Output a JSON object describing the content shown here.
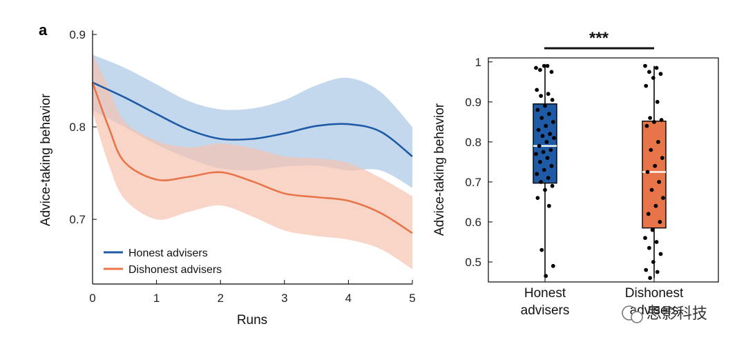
{
  "figure": {
    "panel_label": "a",
    "watermark": "思影科技"
  },
  "chart_data": [
    {
      "type": "line",
      "title": "",
      "xlabel": "Runs",
      "ylabel": "Advice-taking behavior",
      "xlim": [
        0,
        5
      ],
      "ylim": [
        0.63,
        0.9
      ],
      "xticks": [
        0,
        1,
        2,
        3,
        4,
        5
      ],
      "yticks": [
        0.7,
        0.8,
        0.9
      ],
      "grid": false,
      "legend_position": "bottom-left",
      "series": [
        {
          "name": "Honest advisers",
          "color": "#1f5aa6",
          "band_color": "#a9c6e6",
          "x": [
            0,
            0.5,
            1,
            1.5,
            2,
            2.5,
            3,
            3.5,
            4,
            4.5,
            5
          ],
          "y": [
            0.848,
            0.832,
            0.814,
            0.797,
            0.787,
            0.787,
            0.793,
            0.801,
            0.803,
            0.795,
            0.768
          ],
          "upper": [
            0.878,
            0.864,
            0.846,
            0.828,
            0.819,
            0.82,
            0.829,
            0.845,
            0.853,
            0.838,
            0.8
          ],
          "lower": [
            0.818,
            0.8,
            0.781,
            0.766,
            0.755,
            0.753,
            0.757,
            0.758,
            0.753,
            0.753,
            0.734
          ]
        },
        {
          "name": "Dishonest advisers",
          "color": "#e8754a",
          "band_color": "#f7c3b0",
          "x": [
            0,
            0.25,
            0.5,
            1,
            1.5,
            2,
            2.5,
            3,
            3.5,
            4,
            4.5,
            5
          ],
          "y": [
            0.848,
            0.8,
            0.762,
            0.743,
            0.746,
            0.751,
            0.741,
            0.728,
            0.724,
            0.72,
            0.707,
            0.685
          ],
          "upper": [
            0.88,
            0.842,
            0.806,
            0.785,
            0.778,
            0.782,
            0.777,
            0.768,
            0.766,
            0.761,
            0.745,
            0.725
          ],
          "lower": [
            0.816,
            0.76,
            0.722,
            0.7,
            0.708,
            0.715,
            0.703,
            0.688,
            0.682,
            0.678,
            0.668,
            0.646
          ]
        }
      ]
    },
    {
      "type": "box",
      "title": "",
      "xlabel": "",
      "ylabel": "Advice-taking behavior",
      "ylim": [
        0.45,
        1.01
      ],
      "yticks": [
        0.5,
        0.6,
        0.7,
        0.8,
        0.9,
        1
      ],
      "grid": false,
      "significance": "***",
      "categories": [
        {
          "label_line1": "Honest",
          "label_line2": "advisers"
        },
        {
          "label_line1": "Dishonest",
          "label_line2": "advisers"
        }
      ],
      "boxes": [
        {
          "name": "Honest advisers",
          "color": "#1f5aa6",
          "min": 0.465,
          "q1": 0.697,
          "median": 0.79,
          "q3": 0.895,
          "max": 0.99,
          "points": [
            0.985,
            0.99,
            0.98,
            0.975,
            0.99,
            0.93,
            0.92,
            0.915,
            0.905,
            0.89,
            0.88,
            0.87,
            0.86,
            0.85,
            0.84,
            0.83,
            0.82,
            0.815,
            0.81,
            0.8,
            0.79,
            0.78,
            0.775,
            0.77,
            0.76,
            0.75,
            0.74,
            0.73,
            0.72,
            0.71,
            0.7,
            0.69,
            0.68,
            0.66,
            0.64,
            0.53,
            0.49,
            0.465
          ]
        },
        {
          "name": "Dishonest advisers",
          "color": "#e8754a",
          "min": 0.46,
          "q1": 0.585,
          "median": 0.725,
          "q3": 0.852,
          "max": 0.99,
          "points": [
            0.99,
            0.985,
            0.975,
            0.97,
            0.96,
            0.94,
            0.9,
            0.86,
            0.855,
            0.85,
            0.84,
            0.8,
            0.78,
            0.76,
            0.74,
            0.725,
            0.7,
            0.68,
            0.66,
            0.64,
            0.62,
            0.6,
            0.58,
            0.56,
            0.55,
            0.535,
            0.52,
            0.5,
            0.48,
            0.475,
            0.46
          ]
        }
      ]
    }
  ]
}
